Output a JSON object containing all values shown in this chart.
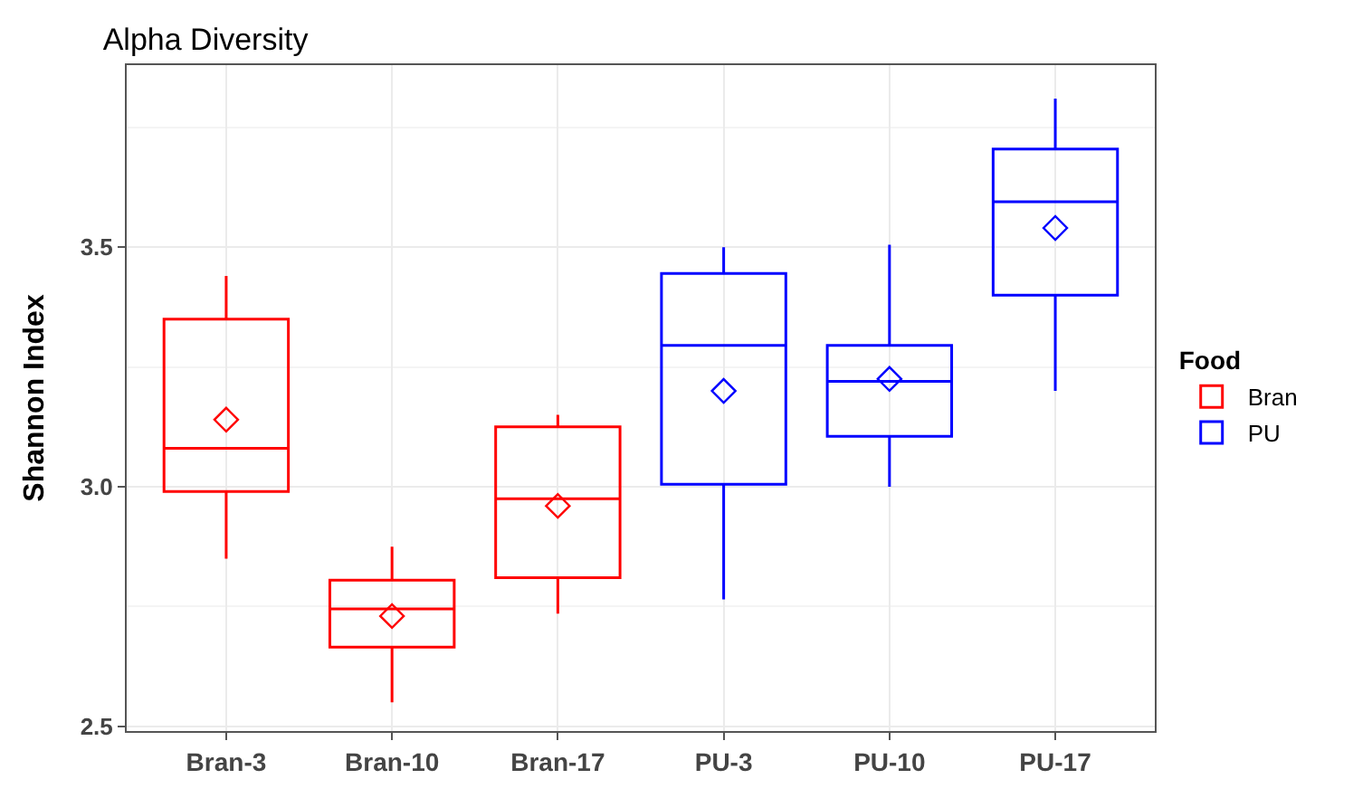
{
  "chart_data": {
    "type": "box",
    "title": "Alpha Diversity",
    "ylabel": "Shannon Index",
    "legend_title": "Food",
    "categories": [
      "Bran-3",
      "Bran-10",
      "Bran-17",
      "PU-3",
      "PU-10",
      "PU-17"
    ],
    "series": [
      {
        "name": "Bran",
        "color": "#ff0000",
        "boxes": [
          {
            "low": 2.85,
            "q1": 2.99,
            "median": 3.08,
            "q3": 3.35,
            "high": 3.44,
            "mean": 3.14
          },
          {
            "low": 2.55,
            "q1": 2.665,
            "median": 2.745,
            "q3": 2.805,
            "high": 2.875,
            "mean": 2.73
          },
          {
            "low": 2.735,
            "q1": 2.81,
            "median": 2.975,
            "q3": 3.125,
            "high": 3.15,
            "mean": 2.96
          },
          null,
          null,
          null
        ]
      },
      {
        "name": "PU",
        "color": "#0000ff",
        "boxes": [
          null,
          null,
          null,
          {
            "low": 2.765,
            "q1": 3.005,
            "median": 3.295,
            "q3": 3.445,
            "high": 3.5,
            "mean": 3.2
          },
          {
            "low": 3.0,
            "q1": 3.105,
            "median": 3.22,
            "q3": 3.295,
            "high": 3.505,
            "mean": 3.225
          },
          {
            "low": 3.2,
            "q1": 3.4,
            "median": 3.595,
            "q3": 3.705,
            "high": 3.81,
            "mean": 3.54
          }
        ]
      }
    ],
    "ylim": [
      2.49,
      3.88
    ],
    "yticks": [
      {
        "value": 2.5,
        "label": "2.5"
      },
      {
        "value": 3,
        "label": "3.0"
      },
      {
        "value": 3.5,
        "label": "3.5"
      }
    ],
    "grid": true,
    "legend": "right",
    "marker": "diamond"
  }
}
